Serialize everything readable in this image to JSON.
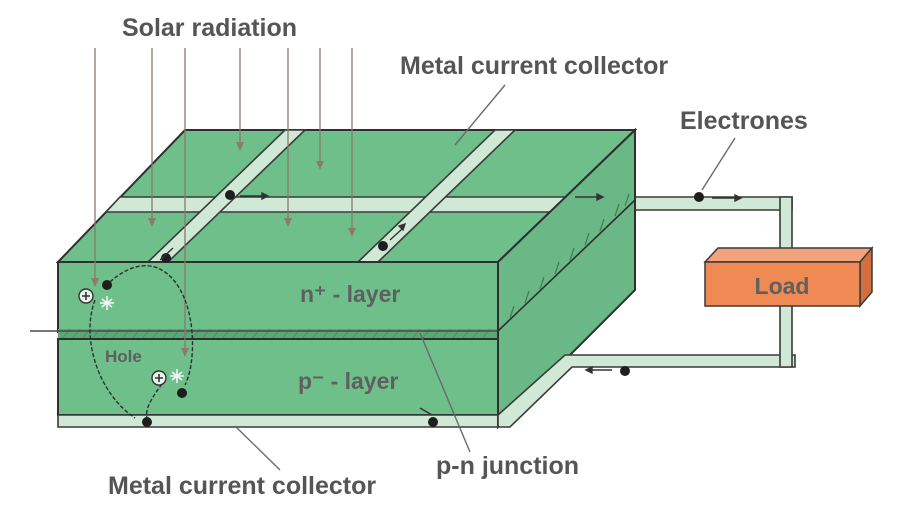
{
  "labels": {
    "solar_radiation": "Solar radiation",
    "metal_collector_top": "Metal current collector",
    "electrones": "Electrones",
    "load": "Load",
    "n_layer": "n⁺ - layer",
    "p_layer": "p⁻ - layer",
    "hole": "Hole",
    "pn_junction": "p-n junction",
    "metal_collector_bottom": "Metal current collector"
  },
  "colors": {
    "cell_green": "#6fbf8a",
    "cell_side": "#6ab885",
    "collector_strip": "#cfe9d6",
    "load_fill": "#f08a55",
    "load_side": "#d36f3e",
    "label_gray": "#555555",
    "ray_brown": "#8a7b6b"
  },
  "icons": {
    "electron": "black-dot",
    "hole": "circled-plus",
    "recombination": "star-burst"
  }
}
